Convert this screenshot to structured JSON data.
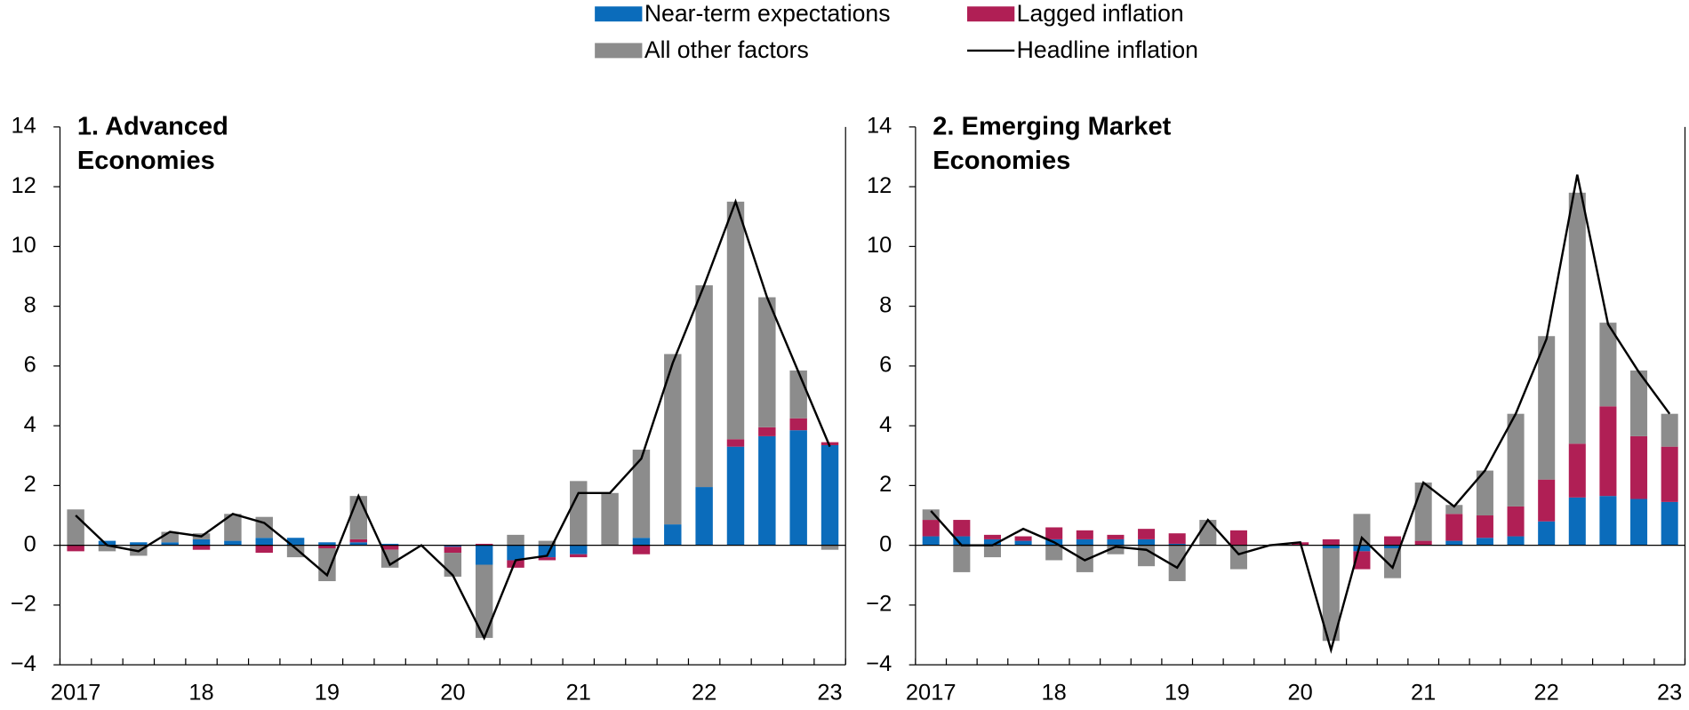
{
  "chart_data": [
    {
      "type": "bar",
      "title": "1. Advanced Economies",
      "categories": [
        "2017",
        null,
        null,
        null,
        "18",
        null,
        null,
        null,
        "19",
        null,
        null,
        null,
        "20",
        null,
        null,
        null,
        "21",
        null,
        null,
        null,
        "22",
        null,
        null,
        null,
        "23"
      ],
      "ylim": [
        -4,
        14
      ],
      "yticks": [
        {
          "value": -4,
          "label": "−4"
        },
        {
          "value": -2,
          "label": "−2"
        },
        0,
        2,
        4,
        6,
        8,
        10,
        12,
        14
      ],
      "series": [
        {
          "name": "Near-term expectations",
          "color": "#0b6cbb",
          "values": [
            0,
            0.15,
            0.1,
            0.1,
            0.2,
            0.15,
            0.25,
            0.25,
            0.1,
            0.1,
            0.05,
            0,
            -0.05,
            -0.65,
            -0.5,
            -0.4,
            -0.3,
            0,
            0.25,
            0.7,
            1.95,
            3.3,
            3.65,
            3.85,
            3.35
          ]
        },
        {
          "name": "Lagged inflation",
          "color": "#b01f55",
          "values": [
            -0.2,
            0,
            0,
            0,
            -0.15,
            0,
            -0.25,
            0,
            -0.1,
            0.1,
            -0.15,
            0,
            -0.2,
            0.05,
            -0.25,
            -0.1,
            -0.1,
            0,
            -0.3,
            0,
            0,
            0.25,
            0.3,
            0.4,
            0.1
          ]
        },
        {
          "name": "All other factors",
          "color": "#8c8c8c",
          "values": [
            1.2,
            -0.2,
            -0.35,
            0.35,
            0.2,
            0.9,
            0.7,
            -0.4,
            -1.1,
            1.45,
            -0.6,
            0,
            -0.8,
            -2.45,
            0.35,
            0.15,
            2.15,
            1.75,
            2.95,
            5.7,
            6.75,
            7.95,
            4.35,
            1.6,
            -0.15
          ]
        },
        {
          "name": "Headline inflation",
          "type": "line",
          "color": "#000000",
          "values": [
            1.0,
            0.0,
            -0.2,
            0.45,
            0.3,
            1.05,
            0.75,
            -0.1,
            -1.0,
            1.65,
            -0.65,
            0,
            -1.0,
            -3.1,
            -0.5,
            -0.35,
            1.75,
            1.75,
            2.9,
            6.1,
            8.7,
            11.5,
            8.3,
            5.8,
            3.3
          ]
        }
      ]
    },
    {
      "type": "bar",
      "title": "2. Emerging Market Economies",
      "categories": [
        "2017",
        null,
        null,
        null,
        "18",
        null,
        null,
        null,
        "19",
        null,
        null,
        null,
        "20",
        null,
        null,
        null,
        "21",
        null,
        null,
        null,
        "22",
        null,
        null,
        null,
        "23"
      ],
      "ylim": [
        -4,
        14
      ],
      "yticks": [
        {
          "value": -4,
          "label": "−4"
        },
        {
          "value": -2,
          "label": "−2"
        },
        0,
        2,
        4,
        6,
        8,
        10,
        12,
        14
      ],
      "series": [
        {
          "color": "#0b6cbb",
          "values": [
            0.3,
            0.3,
            0.2,
            0.15,
            0.2,
            0.2,
            0.2,
            0.2,
            0.05,
            0,
            0,
            0,
            0,
            -0.1,
            -0.2,
            -0.1,
            0,
            0.15,
            0.25,
            0.3,
            0.8,
            1.6,
            1.65,
            1.55,
            1.45
          ]
        },
        {
          "color": "#b01f55",
          "values": [
            0.55,
            0.55,
            0.15,
            0.15,
            0.4,
            0.3,
            0.15,
            0.35,
            0.35,
            0,
            0.5,
            0,
            0.1,
            0.2,
            -0.6,
            0.3,
            0.15,
            0.9,
            0.75,
            1.0,
            1.4,
            1.8,
            3.0,
            2.1,
            1.85
          ]
        },
        {
          "color": "#8c8c8c",
          "values": [
            0.35,
            -0.9,
            -0.4,
            0,
            -0.5,
            -0.9,
            -0.3,
            -0.7,
            -1.2,
            0.85,
            -0.8,
            0,
            0,
            -3.1,
            1.05,
            -1.0,
            1.95,
            0.3,
            1.5,
            3.1,
            4.8,
            8.4,
            2.8,
            2.2,
            1.1
          ]
        },
        {
          "type": "line",
          "color": "#000000",
          "values": [
            1.15,
            0.0,
            0.0,
            0.55,
            0.1,
            -0.5,
            -0.05,
            -0.15,
            -0.75,
            0.85,
            -0.3,
            0,
            0.1,
            -3.5,
            0.25,
            -0.75,
            2.1,
            1.3,
            2.5,
            4.4,
            6.9,
            12.4,
            7.4,
            5.8,
            4.4
          ]
        }
      ]
    }
  ]
}
